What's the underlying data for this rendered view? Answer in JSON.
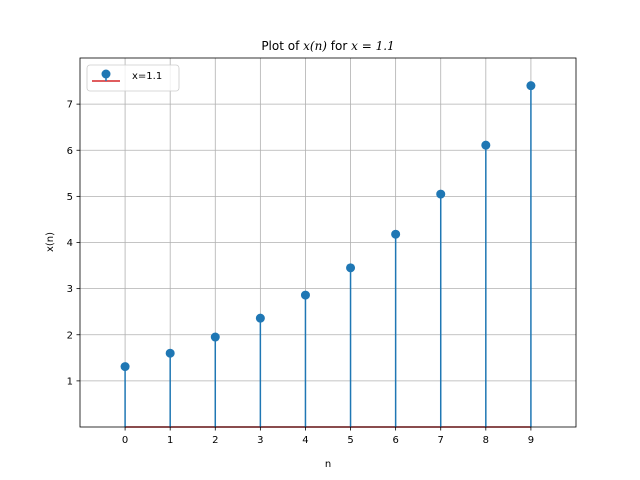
{
  "chart_data": {
    "type": "stem",
    "title_prefix": "Plot of ",
    "title_math_1": "x(n)",
    "title_mid": " for ",
    "title_math_2": "x = 1.1",
    "xlabel": "n",
    "ylabel": "x(n)",
    "x": [
      0,
      1,
      2,
      3,
      4,
      5,
      6,
      7,
      8,
      9
    ],
    "y": [
      1.31,
      1.6,
      1.95,
      2.36,
      2.86,
      3.45,
      4.18,
      5.05,
      6.11,
      7.4
    ],
    "xlim": [
      -1,
      10
    ],
    "ylim": [
      0,
      8
    ],
    "xticks": [
      "0",
      "1",
      "2",
      "3",
      "4",
      "5",
      "6",
      "7",
      "8",
      "9"
    ],
    "yticks": [
      "1",
      "2",
      "3",
      "4",
      "5",
      "6",
      "7"
    ],
    "grid": true,
    "legend_position": "top-left",
    "series": [
      {
        "name": "x=1.1",
        "marker_color": "#1f77b4",
        "stem_color": "#1f77b4",
        "baseline_color": "#d62728"
      }
    ]
  }
}
